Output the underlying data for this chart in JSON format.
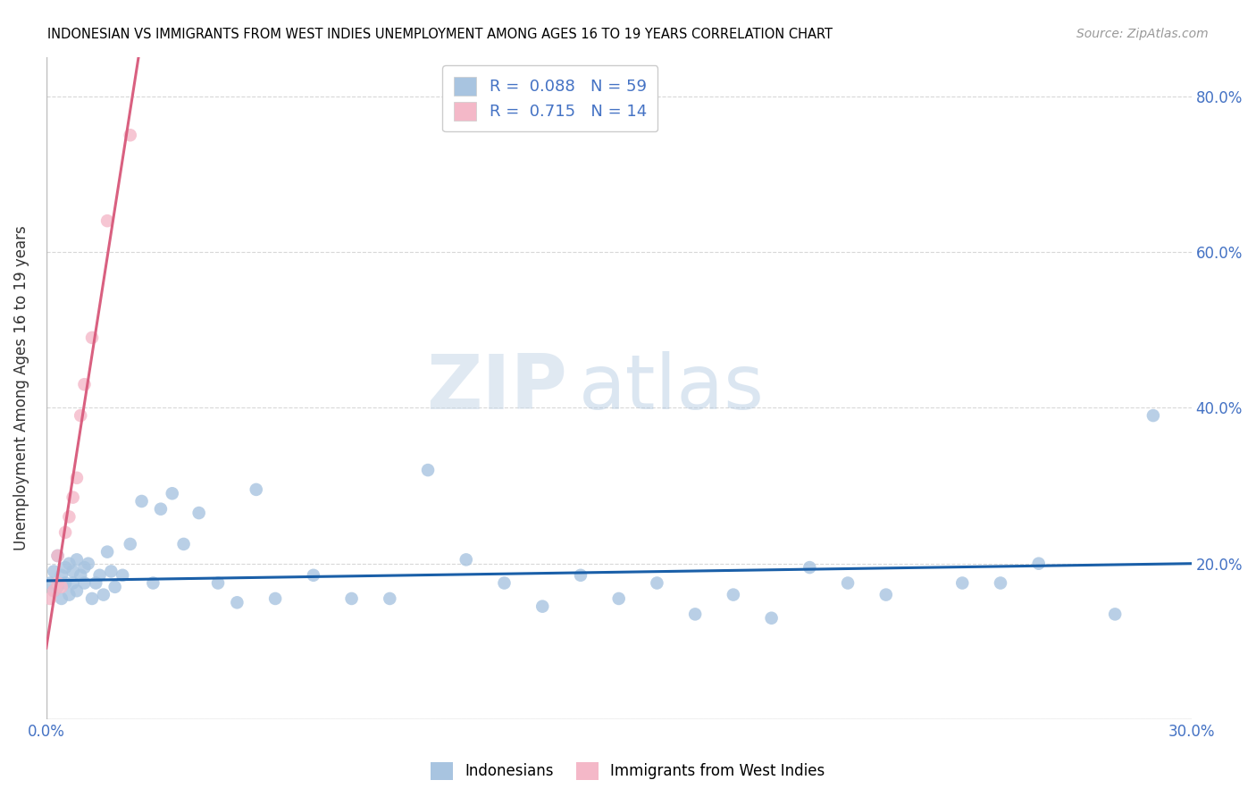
{
  "title": "INDONESIAN VS IMMIGRANTS FROM WEST INDIES UNEMPLOYMENT AMONG AGES 16 TO 19 YEARS CORRELATION CHART",
  "source": "Source: ZipAtlas.com",
  "ylabel": "Unemployment Among Ages 16 to 19 years",
  "xlim": [
    0.0,
    0.3
  ],
  "ylim": [
    0.0,
    0.85
  ],
  "x_ticks": [
    0.0,
    0.05,
    0.1,
    0.15,
    0.2,
    0.25,
    0.3
  ],
  "x_tick_labels": [
    "0.0%",
    "",
    "",
    "",
    "",
    "",
    "30.0%"
  ],
  "y_ticks": [
    0.0,
    0.2,
    0.4,
    0.6,
    0.8
  ],
  "y_tick_labels": [
    "",
    "20.0%",
    "40.0%",
    "60.0%",
    "80.0%"
  ],
  "legend1_R": "0.088",
  "legend1_N": "59",
  "legend2_R": "0.715",
  "legend2_N": "14",
  "color_blue": "#a8c4e0",
  "color_pink": "#f4b8c8",
  "line_blue": "#1a5fa8",
  "line_pink": "#d96080",
  "indonesians_x": [
    0.001,
    0.002,
    0.002,
    0.003,
    0.003,
    0.004,
    0.004,
    0.005,
    0.005,
    0.006,
    0.006,
    0.007,
    0.007,
    0.008,
    0.008,
    0.009,
    0.01,
    0.01,
    0.011,
    0.012,
    0.013,
    0.014,
    0.015,
    0.016,
    0.017,
    0.018,
    0.02,
    0.022,
    0.025,
    0.028,
    0.03,
    0.033,
    0.036,
    0.04,
    0.045,
    0.05,
    0.055,
    0.06,
    0.07,
    0.08,
    0.09,
    0.1,
    0.11,
    0.12,
    0.13,
    0.14,
    0.15,
    0.16,
    0.17,
    0.18,
    0.19,
    0.2,
    0.21,
    0.22,
    0.24,
    0.25,
    0.26,
    0.28,
    0.29
  ],
  "indonesians_y": [
    0.175,
    0.19,
    0.165,
    0.21,
    0.17,
    0.185,
    0.155,
    0.195,
    0.175,
    0.2,
    0.16,
    0.175,
    0.19,
    0.165,
    0.205,
    0.185,
    0.175,
    0.195,
    0.2,
    0.155,
    0.175,
    0.185,
    0.16,
    0.215,
    0.19,
    0.17,
    0.185,
    0.225,
    0.28,
    0.175,
    0.27,
    0.29,
    0.225,
    0.265,
    0.175,
    0.15,
    0.295,
    0.155,
    0.185,
    0.155,
    0.155,
    0.32,
    0.205,
    0.175,
    0.145,
    0.185,
    0.155,
    0.175,
    0.135,
    0.16,
    0.13,
    0.195,
    0.175,
    0.16,
    0.175,
    0.175,
    0.2,
    0.135,
    0.39
  ],
  "west_indies_x": [
    0.001,
    0.002,
    0.003,
    0.003,
    0.004,
    0.005,
    0.006,
    0.007,
    0.008,
    0.009,
    0.01,
    0.012,
    0.016,
    0.022
  ],
  "west_indies_y": [
    0.155,
    0.165,
    0.175,
    0.21,
    0.17,
    0.24,
    0.26,
    0.285,
    0.31,
    0.39,
    0.43,
    0.49,
    0.64,
    0.75
  ],
  "watermark_zip": "ZIP",
  "watermark_atlas": "atlas",
  "grid_color": "#d8d8d8"
}
